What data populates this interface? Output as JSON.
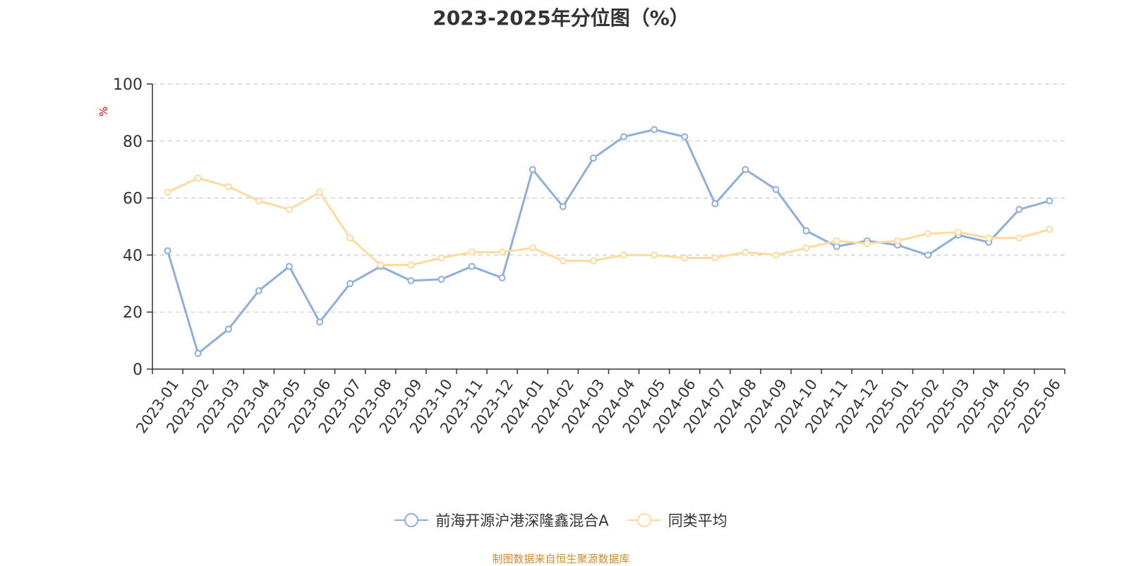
{
  "chart_data": {
    "type": "line",
    "title": "2023-2025年分位图（%）",
    "ylabel": "%",
    "ylim": [
      0,
      100
    ],
    "yticks": [
      0,
      20,
      40,
      60,
      80,
      100
    ],
    "grid": true,
    "legend_position": "bottom",
    "categories": [
      "2023-01",
      "2023-02",
      "2023-03",
      "2023-04",
      "2023-05",
      "2023-06",
      "2023-07",
      "2023-08",
      "2023-09",
      "2023-10",
      "2023-11",
      "2023-12",
      "2024-01",
      "2024-02",
      "2024-03",
      "2024-04",
      "2024-05",
      "2024-06",
      "2024-07",
      "2024-08",
      "2024-09",
      "2024-10",
      "2024-11",
      "2024-12",
      "2025-01",
      "2025-02",
      "2025-03",
      "2025-04",
      "2025-05",
      "2025-06"
    ],
    "series": [
      {
        "name": "前海开源沪港深隆鑫混合A",
        "color": "#8eaedb",
        "values": [
          41.5,
          5.5,
          14,
          27.5,
          36,
          16.5,
          30,
          36,
          31,
          31.5,
          36,
          32,
          70,
          57,
          74,
          81.5,
          84,
          81.5,
          58,
          70,
          63,
          48.5,
          43,
          45,
          43.5,
          40,
          47,
          44.5,
          56,
          59
        ]
      },
      {
        "name": "同类平均",
        "color": "#fddb9c",
        "values": [
          62,
          67,
          64,
          59,
          56,
          62,
          46,
          36.5,
          36.5,
          39,
          41,
          41,
          42.5,
          38,
          38,
          40,
          40,
          39,
          39,
          41,
          40,
          42.5,
          45,
          44,
          45,
          47.5,
          48,
          46,
          46,
          49
        ]
      }
    ]
  },
  "source": "制图数据来自恒生聚源数据库"
}
